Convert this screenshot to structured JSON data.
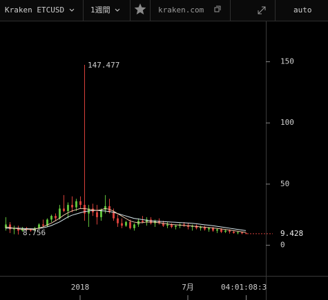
{
  "toolbar": {
    "market": "Kraken ETCUSD",
    "period": "1週間",
    "site": "kraken.com",
    "mode": "auto"
  },
  "chart_data": {
    "type": "candlestick",
    "categories": [
      null,
      null,
      null,
      null,
      null,
      null,
      null,
      null,
      null,
      null,
      null,
      null,
      null,
      null,
      null,
      null,
      null,
      null,
      "2018",
      null,
      null,
      null,
      null,
      null,
      null,
      null,
      null,
      null,
      null,
      null,
      null,
      null,
      null,
      null,
      null,
      null,
      null,
      null,
      null,
      null,
      null,
      null,
      null,
      null,
      "7月",
      null,
      null,
      null,
      null,
      null,
      null,
      null,
      null,
      null,
      null,
      null,
      null,
      null,
      null
    ],
    "open": [
      14,
      17,
      13,
      14,
      12,
      14,
      13,
      12,
      14,
      17,
      16,
      21,
      24,
      22,
      30,
      28,
      33,
      31,
      36,
      33,
      26,
      30,
      27,
      23,
      29,
      32,
      27,
      22,
      18,
      16,
      19,
      14,
      17,
      20,
      19,
      21,
      18,
      20,
      18,
      16,
      17,
      15,
      16,
      17,
      16,
      15,
      16,
      14,
      15,
      13,
      14,
      12,
      13,
      11,
      12,
      11,
      10,
      10.5,
      9.8
    ],
    "high": [
      23,
      19,
      16,
      16,
      15,
      15,
      14,
      15,
      18,
      21,
      22,
      25,
      26,
      33,
      41,
      35,
      40,
      38,
      40,
      147.477,
      33,
      34,
      33,
      30,
      41,
      38,
      30,
      25,
      22,
      20,
      21,
      18,
      22,
      24,
      23,
      23,
      21,
      22,
      20,
      19,
      18,
      17,
      18,
      19,
      18,
      17,
      17,
      16,
      16,
      15,
      15,
      14,
      14,
      13,
      13,
      12,
      11.5,
      11,
      10.5
    ],
    "low": [
      12,
      10,
      9,
      8.756,
      11,
      12,
      11,
      11,
      13,
      15,
      15,
      19,
      20,
      21,
      27,
      22,
      27,
      28,
      30,
      20,
      15,
      24,
      17,
      20,
      26,
      26,
      20,
      15,
      14,
      15,
      13,
      12,
      15,
      18,
      16,
      17,
      15,
      17,
      15,
      14,
      14,
      13,
      14,
      15,
      13,
      12,
      13,
      12,
      12,
      11,
      11,
      10,
      10,
      10,
      9.5,
      9.5,
      9,
      9,
      9.2
    ],
    "close": [
      17,
      13,
      14,
      12,
      14,
      13,
      12,
      14,
      17,
      16,
      21,
      24,
      22,
      30,
      28,
      33,
      31,
      36,
      33,
      26,
      30,
      27,
      23,
      29,
      32,
      27,
      22,
      18,
      16,
      19,
      14,
      17,
      20,
      19,
      21,
      18,
      20,
      18,
      16,
      17,
      15,
      16,
      17,
      16,
      15,
      16,
      14,
      15,
      13,
      14,
      12,
      13,
      11,
      12,
      11,
      10,
      10.5,
      9.8,
      9.428
    ],
    "up_color": "#5fbf3a",
    "down_color": "#d8403a",
    "ma": [
      {
        "color": "#d8e8ee",
        "values": [
          14,
          14,
          14,
          14,
          13.8,
          13.6,
          13.5,
          13.5,
          13.8,
          14.2,
          15,
          16,
          17.5,
          19,
          21,
          23,
          24.5,
          25.5,
          26.5,
          27.5,
          28,
          28.5,
          28.5,
          28.3,
          28,
          27.6,
          27,
          26,
          25,
          24,
          23,
          22,
          21.5,
          21,
          20.5,
          20,
          19.8,
          19.6,
          19.4,
          19.2,
          19,
          18.8,
          18.6,
          18.4,
          18.2,
          18,
          17.6,
          17.2,
          16.8,
          16.4,
          16,
          15.5,
          15,
          14.5,
          14,
          13.5,
          13,
          12.5,
          12
        ]
      },
      {
        "color": "#f0c8a8",
        "values": [
          15,
          14.5,
          14,
          13.5,
          13,
          13,
          13,
          13.2,
          14,
          15,
          16.5,
          18,
          20,
          22,
          24.5,
          26.5,
          28,
          29,
          30,
          30,
          29.5,
          29,
          28.5,
          29,
          30,
          29.5,
          28,
          26,
          24,
          22,
          20,
          19,
          18.5,
          18.5,
          19,
          19,
          18.8,
          18.5,
          18,
          17.5,
          17,
          16.8,
          16.5,
          16.2,
          16,
          15.7,
          15.4,
          15.1,
          14.8,
          14.5,
          14.2,
          13.8,
          13.4,
          13,
          12.5,
          12,
          11.5,
          11,
          10.5
        ]
      }
    ],
    "ylim": [
      -25,
      183
    ],
    "yticks": [
      0,
      50,
      100,
      150
    ],
    "timer": "04:01:08:3"
  }
}
